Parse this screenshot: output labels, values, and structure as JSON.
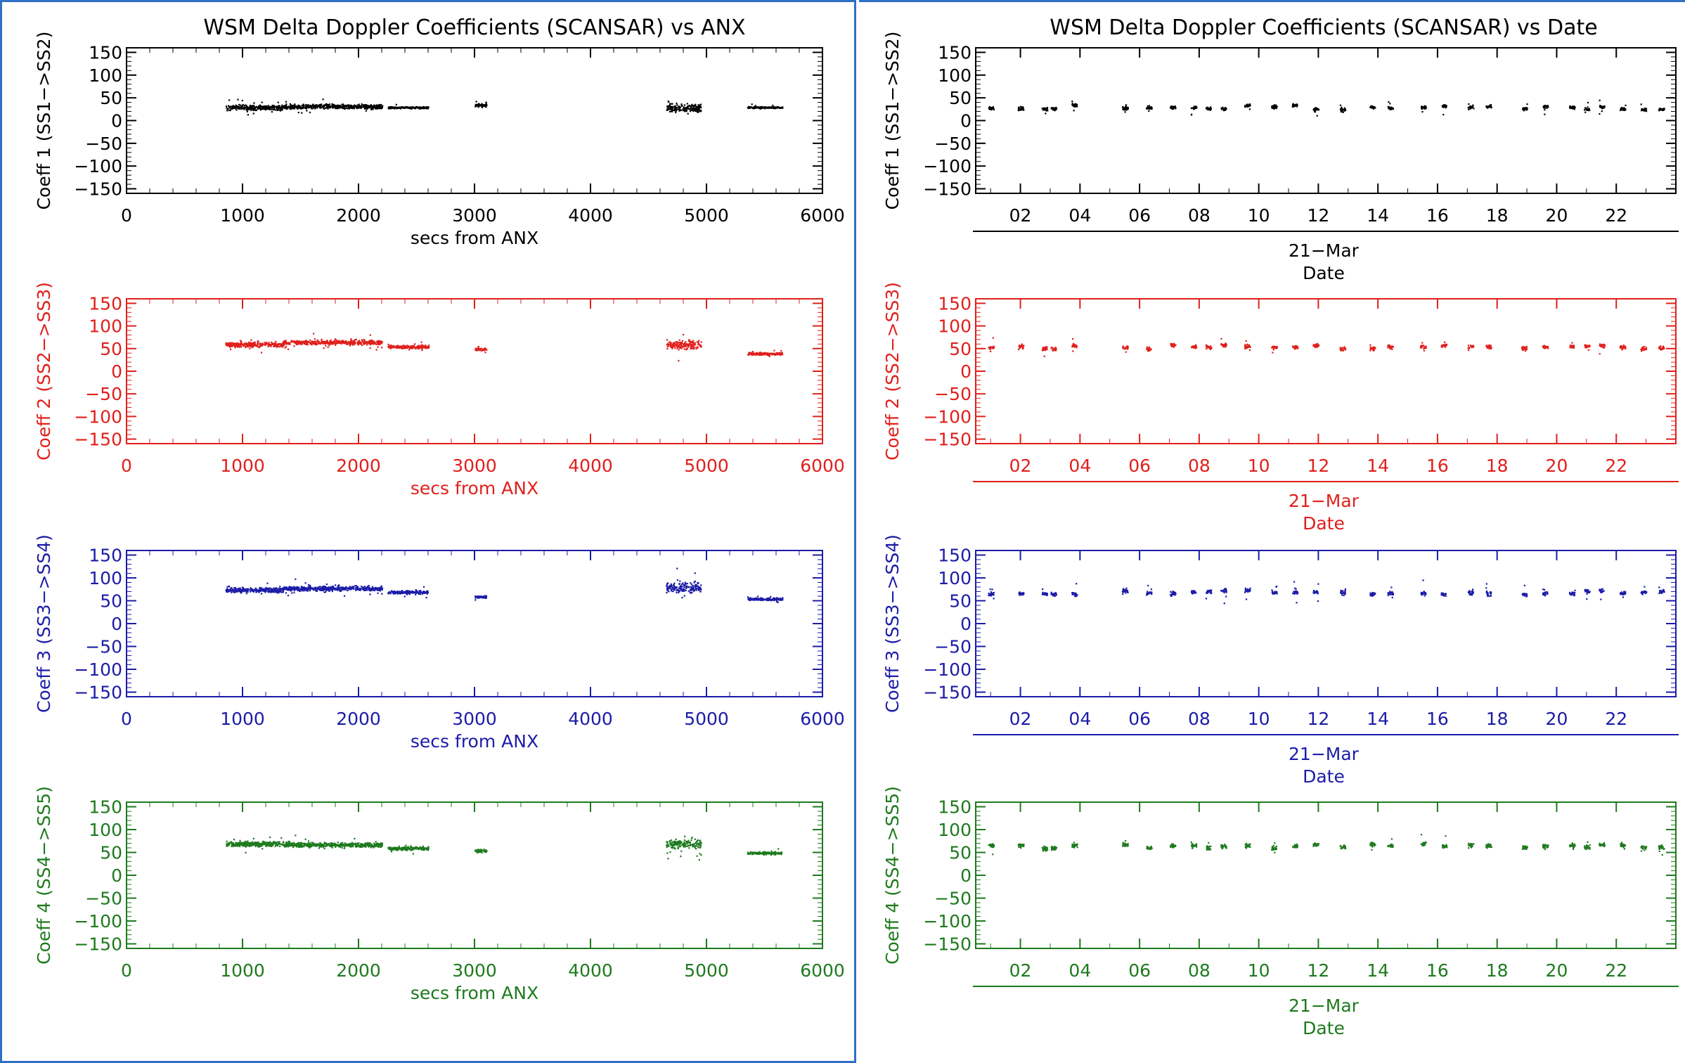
{
  "panels": [
    {
      "title": "WSM Delta Doppler Coefficients (SCANSAR) vs ANX",
      "xlabel": "secs from ANX",
      "xticks": [
        "0",
        "1000",
        "2000",
        "3000",
        "4000",
        "5000",
        "6000"
      ],
      "date_label": "",
      "sublabel": ""
    },
    {
      "title": "WSM Delta Doppler Coefficients (SCANSAR) vs Date",
      "xlabel": "",
      "xticks": [
        "02",
        "04",
        "06",
        "08",
        "10",
        "12",
        "14",
        "16",
        "18",
        "20",
        "22"
      ],
      "date_label": "21−Mar",
      "sublabel": "Date"
    }
  ],
  "yticks": [
    "150",
    "100",
    "50",
    "0",
    "−50",
    "−100",
    "−150"
  ],
  "colors": {
    "coeff1": "#000000",
    "coeff2": "#e0201c",
    "coeff3": "#1c1ca8",
    "coeff4": "#1e7a1e",
    "frame_blue": "#2f6fc6"
  },
  "chart_data": [
    {
      "type": "scatter",
      "title": "WSM Delta Doppler Coefficients (SCANSAR) vs ANX",
      "xlabel": "secs from ANX",
      "xlim": [
        0,
        6000
      ],
      "ylim": [
        -160,
        160
      ],
      "grid": false,
      "series": [
        {
          "name": "Coeff 1 (SS1−>SS2)",
          "ylabel": "Coeff 1 (SS1−>SS2)",
          "color": "#000000",
          "clusters": [
            {
              "x": [
                850,
                1350
              ],
              "y_center": 30,
              "spread": 15
            },
            {
              "x": [
                1350,
                2200
              ],
              "y_center": 32,
              "spread": 14
            },
            {
              "x": [
                2250,
                2600
              ],
              "y_center": 30,
              "spread": 6
            },
            {
              "x": [
                3000,
                3100
              ],
              "y_center": 35,
              "spread": 10
            },
            {
              "x": [
                4650,
                4950
              ],
              "y_center": 30,
              "spread": 25
            },
            {
              "x": [
                5350,
                5650
              ],
              "y_center": 30,
              "spread": 5
            }
          ]
        },
        {
          "name": "Coeff 2 (SS2−>SS3)",
          "ylabel": "Coeff 2 (SS2−>SS3)",
          "color": "#e0201c",
          "clusters": [
            {
              "x": [
                850,
                1350
              ],
              "y_center": 60,
              "spread": 15
            },
            {
              "x": [
                1350,
                2200
              ],
              "y_center": 65,
              "spread": 14
            },
            {
              "x": [
                2250,
                2600
              ],
              "y_center": 55,
              "spread": 10
            },
            {
              "x": [
                3000,
                3100
              ],
              "y_center": 50,
              "spread": 8
            },
            {
              "x": [
                4650,
                4950
              ],
              "y_center": 60,
              "spread": 30
            },
            {
              "x": [
                5350,
                5650
              ],
              "y_center": 40,
              "spread": 8
            }
          ]
        },
        {
          "name": "Coeff 3 (SS3−>SS4)",
          "ylabel": "Coeff 3 (SS3−>SS4)",
          "color": "#1c1ca8",
          "clusters": [
            {
              "x": [
                850,
                1350
              ],
              "y_center": 75,
              "spread": 15
            },
            {
              "x": [
                1350,
                2200
              ],
              "y_center": 78,
              "spread": 14
            },
            {
              "x": [
                2250,
                2600
              ],
              "y_center": 70,
              "spread": 10
            },
            {
              "x": [
                3000,
                3100
              ],
              "y_center": 60,
              "spread": 8
            },
            {
              "x": [
                4650,
                4950
              ],
              "y_center": 80,
              "spread": 30
            },
            {
              "x": [
                5350,
                5650
              ],
              "y_center": 55,
              "spread": 8
            }
          ]
        },
        {
          "name": "Coeff 4 (SS4−>SS5)",
          "ylabel": "Coeff 4 (SS4−>SS5)",
          "color": "#1e7a1e",
          "clusters": [
            {
              "x": [
                850,
                1350
              ],
              "y_center": 70,
              "spread": 16
            },
            {
              "x": [
                1350,
                2200
              ],
              "y_center": 68,
              "spread": 14
            },
            {
              "x": [
                2250,
                2600
              ],
              "y_center": 60,
              "spread": 10
            },
            {
              "x": [
                3000,
                3100
              ],
              "y_center": 55,
              "spread": 10
            },
            {
              "x": [
                4650,
                4950
              ],
              "y_center": 70,
              "spread": 30
            },
            {
              "x": [
                5350,
                5650
              ],
              "y_center": 50,
              "spread": 8
            }
          ]
        }
      ]
    },
    {
      "type": "scatter",
      "title": "WSM Delta Doppler Coefficients (SCANSAR) vs Date",
      "xlabel": "21−Mar Date",
      "xlim": [
        0.5,
        24
      ],
      "ylim": [
        -160,
        160
      ],
      "grid": false,
      "day_positions": [
        1.0,
        2.0,
        2.8,
        3.1,
        3.8,
        5.5,
        6.3,
        7.1,
        7.8,
        8.3,
        8.8,
        9.6,
        10.5,
        11.2,
        11.9,
        12.8,
        13.8,
        14.4,
        15.5,
        16.2,
        17.1,
        17.7,
        18.9,
        19.6,
        20.5,
        21.0,
        21.5,
        22.2,
        22.9,
        23.5
      ],
      "series": [
        {
          "name": "Coeff 1 (SS1−>SS2)",
          "ylabel": "Coeff 1 (SS1−>SS2)",
          "color": "#000000",
          "center": 30,
          "spread": 12
        },
        {
          "name": "Coeff 2 (SS2−>SS3)",
          "ylabel": "Coeff 2 (SS2−>SS3)",
          "color": "#e0201c",
          "center": 55,
          "spread": 14
        },
        {
          "name": "Coeff 3 (SS3−>SS4)",
          "ylabel": "Coeff 3 (SS3−>SS4)",
          "color": "#1c1ca8",
          "center": 70,
          "spread": 15
        },
        {
          "name": "Coeff 4 (SS4−>SS5)",
          "ylabel": "Coeff 4 (SS4−>SS5)",
          "color": "#1e7a1e",
          "center": 65,
          "spread": 15
        }
      ]
    }
  ]
}
